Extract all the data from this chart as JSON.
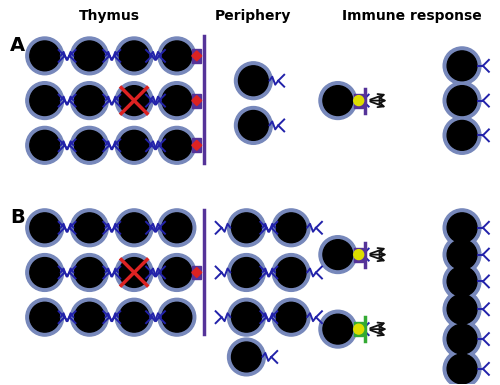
{
  "bg_color": "#ffffff",
  "title_thymus": "Thymus",
  "title_periphery": "Periphery",
  "title_immune": "Immune response",
  "label_A": "A",
  "label_B": "B",
  "cell_r": 15,
  "cell_halo_r": 19,
  "cell_color": "#000000",
  "cell_halo_color": "#7788bb",
  "receptor_color": "#2222aa",
  "mhc_color_purple": "#553399",
  "mhc_color_green": "#33aa33",
  "peptide_color_red": "#dd2222",
  "peptide_color_yellow": "#dddd00",
  "separator_color": "#553399",
  "arrow_color": "#111111",
  "x_color": "#dd2222",
  "title_fontsize": 10,
  "label_fontsize": 14,
  "figw": 5.0,
  "figh": 3.85,
  "dpi": 100
}
